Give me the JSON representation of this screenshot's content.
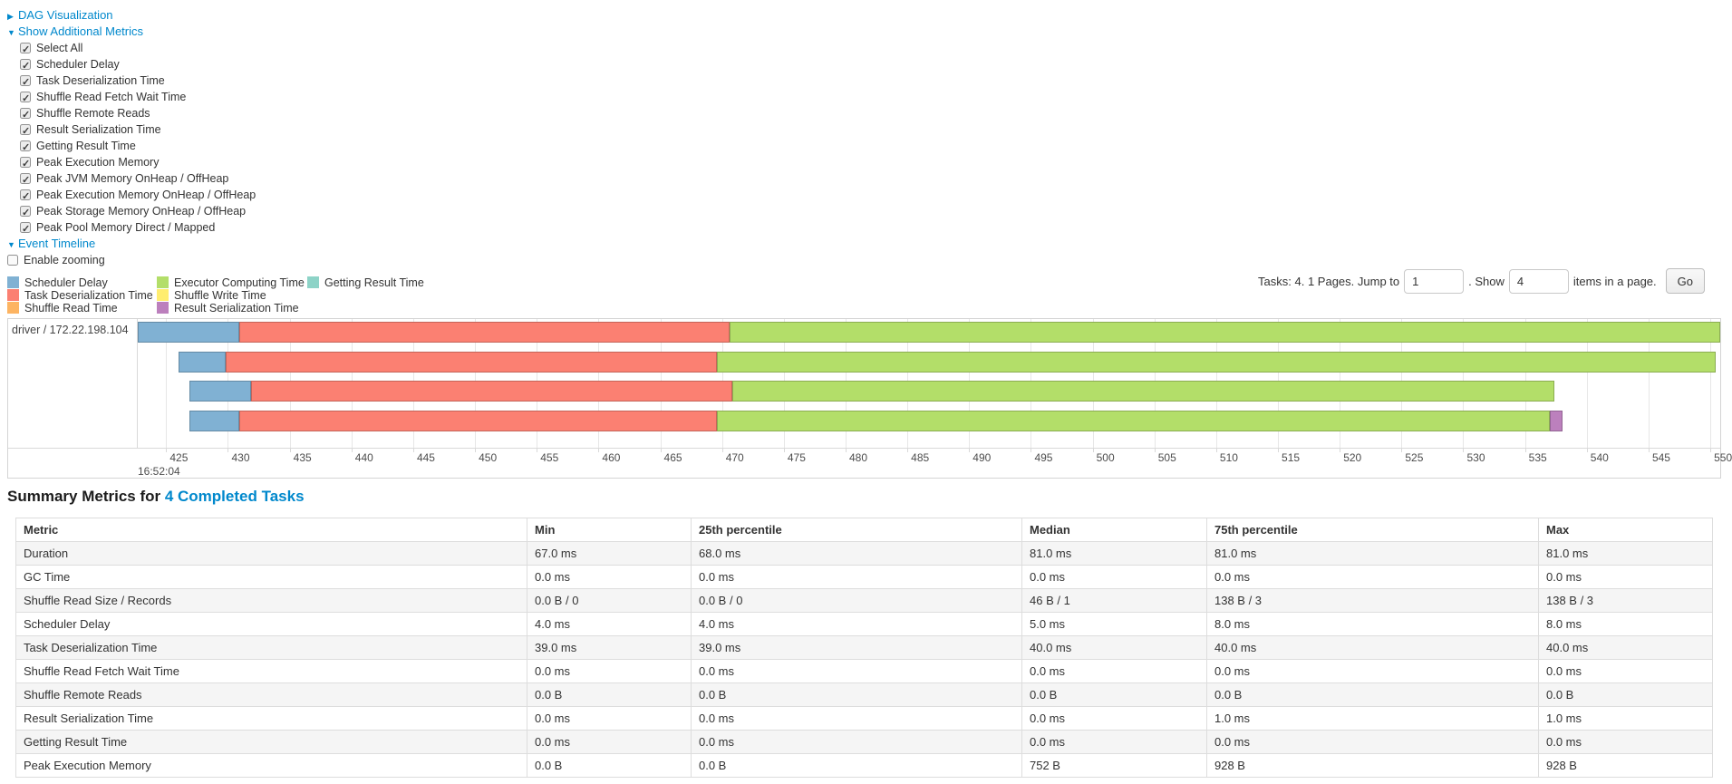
{
  "page": {
    "dag_link": "DAG Visualization",
    "metrics_link": "Show Additional Metrics",
    "timeline_link": "Event Timeline",
    "enable_zooming_label": "Enable zooming"
  },
  "metrics_options": [
    "Select All",
    "Scheduler Delay",
    "Task Deserialization Time",
    "Shuffle Read Fetch Wait Time",
    "Shuffle Remote Reads",
    "Result Serialization Time",
    "Getting Result Time",
    "Peak Execution Memory",
    "Peak JVM Memory OnHeap / OffHeap",
    "Peak Execution Memory OnHeap / OffHeap",
    "Peak Storage Memory OnHeap / OffHeap",
    "Peak Pool Memory Direct / Mapped"
  ],
  "pagination": {
    "tasks_info": "Tasks: 4. 1 Pages. Jump to",
    "jump_value": "1",
    "show_label": ". Show",
    "show_value": "4",
    "items_label": "items in a page.",
    "go_label": "Go"
  },
  "legend": {
    "columns": [
      [
        {
          "label": "Scheduler Delay",
          "key": "scheduler_delay"
        },
        {
          "label": "Task Deserialization Time",
          "key": "task_deserialization"
        },
        {
          "label": "Shuffle Read Time",
          "key": "shuffle_read"
        }
      ],
      [
        {
          "label": "Executor Computing Time",
          "key": "executor_computing"
        },
        {
          "label": "Shuffle Write Time",
          "key": "shuffle_write"
        },
        {
          "label": "Result Serialization Time",
          "key": "result_serialization"
        }
      ],
      [
        {
          "label": "Getting Result Time",
          "key": "getting_result"
        }
      ]
    ]
  },
  "chart_data": {
    "type": "timeline-stacked-bar",
    "group_label": "driver / 172.22.198.104",
    "axis": {
      "min": 422.7,
      "max": 550.8,
      "tick_start": 425,
      "tick_end": 550,
      "tick_step": 5,
      "major_label": "16:52:04",
      "grid": true
    },
    "colors": {
      "scheduler_delay": "#80B1D3",
      "task_deserialization": "#FB8072",
      "shuffle_read": "#FDB462",
      "executor_computing": "#B3DE69",
      "shuffle_write": "#FFED6F",
      "result_serialization": "#BC80BD",
      "getting_result": "#8DD3C7"
    },
    "tasks": [
      {
        "segments": [
          {
            "type": "scheduler_delay",
            "start": 422.7,
            "end": 430.9
          },
          {
            "type": "task_deserialization",
            "start": 430.9,
            "end": 470.6
          },
          {
            "type": "executor_computing",
            "start": 470.6,
            "end": 550.8
          }
        ]
      },
      {
        "segments": [
          {
            "type": "scheduler_delay",
            "start": 426.0,
            "end": 429.8
          },
          {
            "type": "task_deserialization",
            "start": 429.8,
            "end": 469.6
          },
          {
            "type": "executor_computing",
            "start": 469.6,
            "end": 550.4
          }
        ]
      },
      {
        "segments": [
          {
            "type": "scheduler_delay",
            "start": 426.9,
            "end": 431.9
          },
          {
            "type": "task_deserialization",
            "start": 431.9,
            "end": 470.8
          },
          {
            "type": "executor_computing",
            "start": 470.8,
            "end": 537.4
          }
        ]
      },
      {
        "segments": [
          {
            "type": "scheduler_delay",
            "start": 426.9,
            "end": 430.9
          },
          {
            "type": "task_deserialization",
            "start": 430.9,
            "end": 469.6
          },
          {
            "type": "executor_computing",
            "start": 469.6,
            "end": 537.0
          },
          {
            "type": "result_serialization",
            "start": 537.0,
            "end": 538.0
          }
        ]
      }
    ]
  },
  "summary": {
    "title_prefix": "Summary Metrics for ",
    "title_link": "4 Completed Tasks",
    "columns": [
      "Metric",
      "Min",
      "25th percentile",
      "Median",
      "75th percentile",
      "Max"
    ],
    "rows": [
      {
        "metric": "Duration",
        "values": [
          "67.0 ms",
          "68.0 ms",
          "81.0 ms",
          "81.0 ms",
          "81.0 ms"
        ]
      },
      {
        "metric": "GC Time",
        "values": [
          "0.0 ms",
          "0.0 ms",
          "0.0 ms",
          "0.0 ms",
          "0.0 ms"
        ]
      },
      {
        "metric": "Shuffle Read Size / Records",
        "values": [
          "0.0 B / 0",
          "0.0 B / 0",
          "46 B / 1",
          "138 B / 3",
          "138 B / 3"
        ]
      },
      {
        "metric": "Scheduler Delay",
        "values": [
          "4.0 ms",
          "4.0 ms",
          "5.0 ms",
          "8.0 ms",
          "8.0 ms"
        ]
      },
      {
        "metric": "Task Deserialization Time",
        "values": [
          "39.0 ms",
          "39.0 ms",
          "40.0 ms",
          "40.0 ms",
          "40.0 ms"
        ]
      },
      {
        "metric": "Shuffle Read Fetch Wait Time",
        "values": [
          "0.0 ms",
          "0.0 ms",
          "0.0 ms",
          "0.0 ms",
          "0.0 ms"
        ]
      },
      {
        "metric": "Shuffle Remote Reads",
        "values": [
          "0.0 B",
          "0.0 B",
          "0.0 B",
          "0.0 B",
          "0.0 B"
        ]
      },
      {
        "metric": "Result Serialization Time",
        "values": [
          "0.0 ms",
          "0.0 ms",
          "0.0 ms",
          "1.0 ms",
          "1.0 ms"
        ]
      },
      {
        "metric": "Getting Result Time",
        "values": [
          "0.0 ms",
          "0.0 ms",
          "0.0 ms",
          "0.0 ms",
          "0.0 ms"
        ]
      },
      {
        "metric": "Peak Execution Memory",
        "values": [
          "0.0 B",
          "0.0 B",
          "752 B",
          "928 B",
          "928 B"
        ]
      }
    ]
  }
}
